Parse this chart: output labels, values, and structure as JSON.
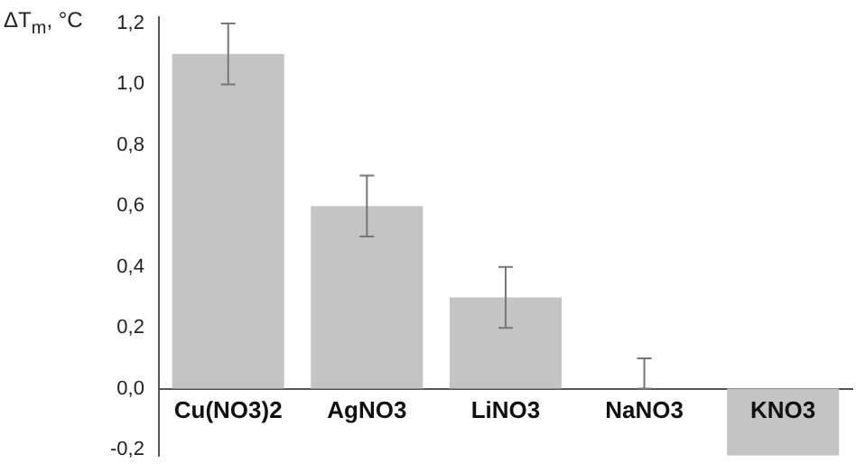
{
  "chart_data": {
    "type": "bar",
    "ylabel": "ΔT$_{m}$, °C",
    "categories": [
      "Cu(NO3)2",
      "AgNO3",
      "LiNO3",
      "NaNO3",
      "KNO3"
    ],
    "values": [
      1.1,
      0.6,
      0.3,
      0,
      -0.22
    ],
    "errors": [
      0.1,
      0.1,
      0.1,
      [
        0,
        0.1
      ],
      null
    ],
    "color": "#c4c4c4",
    "ylim": [
      -0.22,
      1.22
    ],
    "yticks": [
      {
        "value": -0.2,
        "label": "-0,2"
      },
      {
        "value": 0,
        "label": "0,0"
      },
      {
        "value": 0.2,
        "label": "0,2"
      },
      {
        "value": 0.4,
        "label": "0,4"
      },
      {
        "value": 0.6,
        "label": "0,6"
      },
      {
        "value": 0.8,
        "label": "0,8"
      },
      {
        "value": 1,
        "label": "1,0"
      },
      {
        "value": 1.2,
        "label": "1,2"
      }
    ],
    "grid": false,
    "legend": false
  }
}
